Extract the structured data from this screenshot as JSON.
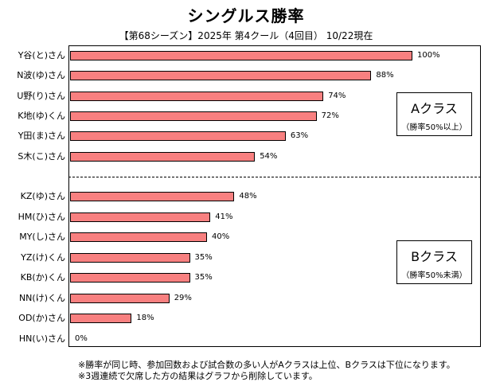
{
  "chart_data": {
    "type": "bar",
    "orientation": "horizontal",
    "title": "シングルス勝率",
    "subtitle": "【第68シーズン】2025年 第4クール（4回目） 10/22現在",
    "categories": [
      "Y谷(と)さん",
      "N波(ゆ)さん",
      "U野(り)さん",
      "K地(ゆ)くん",
      "Y田(ま)さん",
      "S木(こ)さん",
      "KZ(ゆ)さん",
      "HM(ひ)さん",
      "MY(し)さん",
      "YZ(け)くん",
      "KB(か)くん",
      "NN(け)くん",
      "OD(か)さん",
      "HN(い)さん"
    ],
    "values": [
      100,
      88,
      74,
      72,
      63,
      54,
      48,
      41,
      40,
      35,
      35,
      29,
      18,
      0
    ],
    "value_labels": [
      "100%",
      "88%",
      "74%",
      "72%",
      "63%",
      "54%",
      "48%",
      "41%",
      "40%",
      "35%",
      "35%",
      "29%",
      "18%",
      "0%"
    ],
    "xlim": [
      0,
      100
    ],
    "bar_color": "#f88080",
    "grid": false
  },
  "classes": {
    "a": {
      "name": "Aクラス",
      "note": "（勝率50%以上）"
    },
    "b": {
      "name": "Bクラス",
      "note": "（勝率50%未満）"
    }
  },
  "footnotes": [
    "※勝率が同じ時、参加回数および試合数の多い人がAクラスは上位、Bクラスは下位になります。",
    "※3週連続で欠席した方の結果はグラフから削除しています。"
  ]
}
